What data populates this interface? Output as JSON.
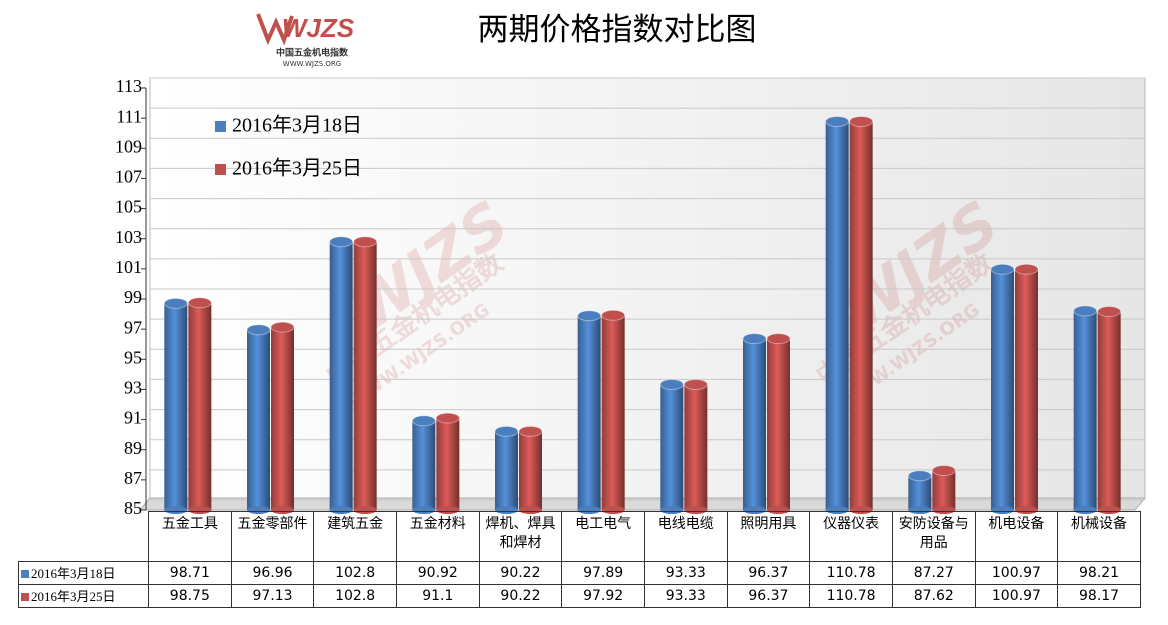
{
  "logo": {
    "mark": "WJZS",
    "name": "中国五金机电指数",
    "url": "WWW.WJZS.ORG"
  },
  "chart_data": {
    "type": "bar",
    "title": "两期价格指数对比图",
    "categories": [
      "五金工具",
      "五金零部件",
      "建筑五金",
      "五金材料",
      "焊机、焊具和焊材",
      "电工电气",
      "电线电缆",
      "照明用具",
      "仪器仪表",
      "安防设备与用品",
      "机电设备",
      "机械设备"
    ],
    "series": [
      {
        "name": "2016年3月18日",
        "color": "#4a7ebf",
        "values": [
          98.71,
          96.96,
          102.8,
          90.92,
          90.22,
          97.89,
          93.33,
          96.37,
          110.78,
          87.27,
          100.97,
          98.21
        ]
      },
      {
        "name": "2016年3月25日",
        "color": "#c0504d",
        "values": [
          98.75,
          97.13,
          102.8,
          91.1,
          90.22,
          97.92,
          93.33,
          96.37,
          110.78,
          87.62,
          100.97,
          98.17
        ]
      }
    ],
    "ylim": [
      85,
      113
    ],
    "yticks": [
      85,
      87,
      89,
      91,
      93,
      95,
      97,
      99,
      101,
      103,
      105,
      107,
      109,
      111,
      113
    ],
    "grid": true
  }
}
